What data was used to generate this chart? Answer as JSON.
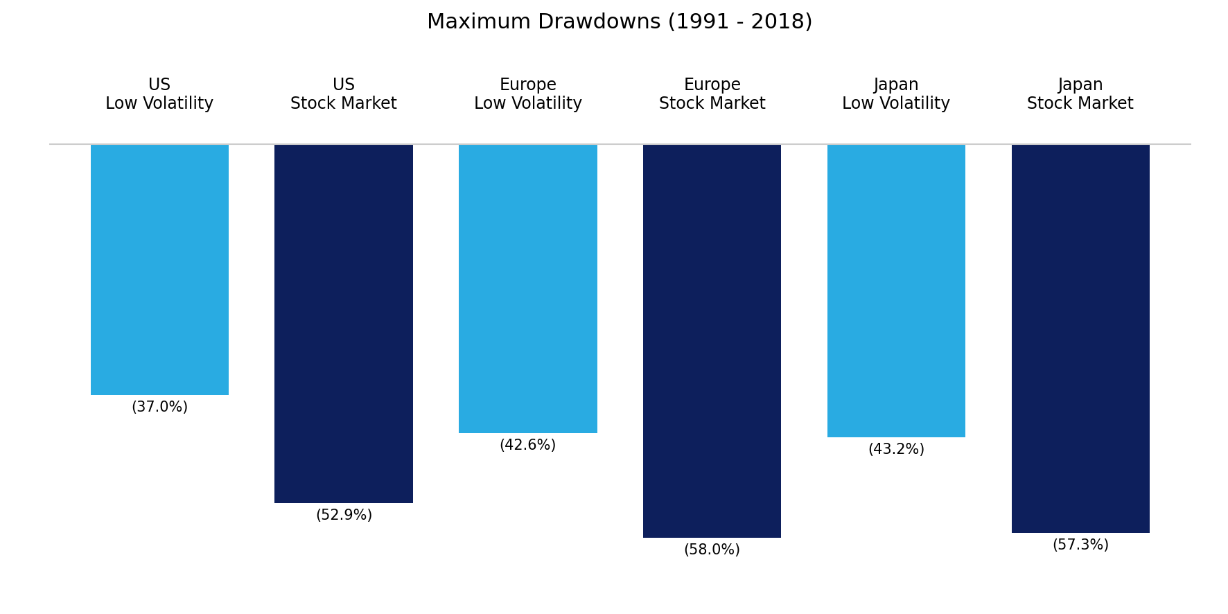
{
  "title": "Maximum Drawdowns (1991 - 2018)",
  "categories": [
    "US\nLow Volatility",
    "US\nStock Market",
    "Europe\nLow Volatility",
    "Europe\nStock Market",
    "Japan\nLow Volatility",
    "Japan\nStock Market"
  ],
  "values": [
    -37.0,
    -52.9,
    -42.6,
    -58.0,
    -43.2,
    -57.3
  ],
  "labels": [
    "(37.0%)",
    "(52.9%)",
    "(42.6%)",
    "(58.0%)",
    "(43.2%)",
    "(57.3%)"
  ],
  "colors": [
    "#29ABE2",
    "#0D1F5C",
    "#29ABE2",
    "#0D1F5C",
    "#29ABE2",
    "#0D1F5C"
  ],
  "bar_width": 0.75,
  "ylim": [
    -62,
    5
  ],
  "title_fontsize": 22,
  "label_fontsize": 15,
  "category_fontsize": 17,
  "background_color": "#FFFFFF",
  "hline_color": "#CCCCCC",
  "hline_y": 0,
  "n_bars": 6
}
